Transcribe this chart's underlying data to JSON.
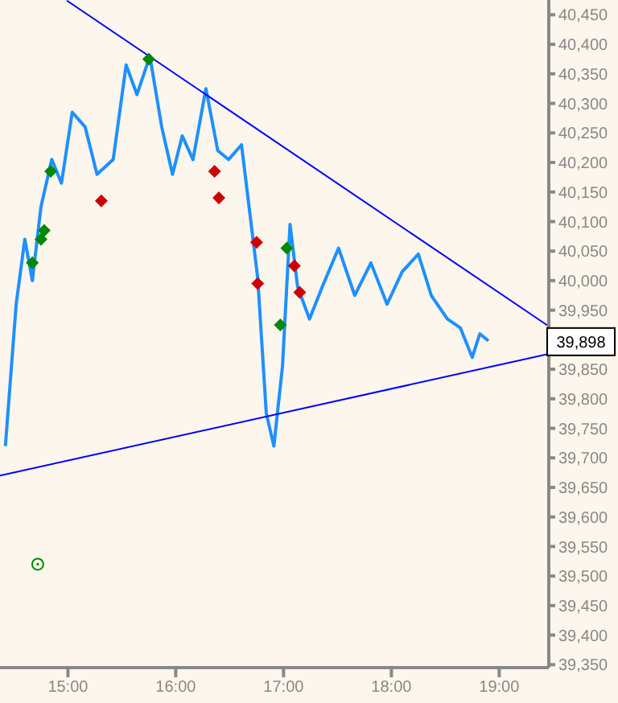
{
  "chart_data": {
    "type": "line",
    "xlim": [
      14.37,
      19.46
    ],
    "ylim": [
      39345,
      40475
    ],
    "xticks": [
      {
        "value": 15,
        "label": "15:00"
      },
      {
        "value": 16,
        "label": "16:00"
      },
      {
        "value": 17,
        "label": "17:00"
      },
      {
        "value": 18,
        "label": "18:00"
      },
      {
        "value": 19,
        "label": "19:00"
      }
    ],
    "yticks": [
      {
        "value": 39350,
        "label": "39,350"
      },
      {
        "value": 39400,
        "label": "39,400"
      },
      {
        "value": 39450,
        "label": "39,450"
      },
      {
        "value": 39500,
        "label": "39,500"
      },
      {
        "value": 39550,
        "label": "39,550"
      },
      {
        "value": 39600,
        "label": "39,600"
      },
      {
        "value": 39650,
        "label": "39,650"
      },
      {
        "value": 39700,
        "label": "39,700"
      },
      {
        "value": 39750,
        "label": "39,750"
      },
      {
        "value": 39800,
        "label": "39,800"
      },
      {
        "value": 39850,
        "label": "39,850"
      },
      {
        "value": 39900,
        "label": null
      },
      {
        "value": 39950,
        "label": "39,950"
      },
      {
        "value": 40000,
        "label": "40,000"
      },
      {
        "value": 40050,
        "label": "40,050"
      },
      {
        "value": 40100,
        "label": "40,100"
      },
      {
        "value": 40150,
        "label": "40,150"
      },
      {
        "value": 40200,
        "label": "40,200"
      },
      {
        "value": 40250,
        "label": "40,250"
      },
      {
        "value": 40300,
        "label": "40,300"
      },
      {
        "value": 40350,
        "label": "40,350"
      },
      {
        "value": 40400,
        "label": "40,400"
      },
      {
        "value": 40450,
        "label": "40,450"
      }
    ],
    "grid": false,
    "legend": false,
    "series": [
      {
        "color": "#1e90ff",
        "marker": "none",
        "x": [
          14.42,
          14.52,
          14.6,
          14.67,
          14.75,
          14.85,
          14.94,
          15.04,
          15.16,
          15.27,
          15.42,
          15.54,
          15.64,
          15.76,
          15.87,
          15.97,
          16.06,
          16.16,
          16.28,
          16.39,
          16.49,
          16.61,
          16.69,
          16.76,
          16.84,
          16.91,
          16.99,
          17.06,
          17.13,
          17.24,
          17.36,
          17.51,
          17.66,
          17.81,
          17.96,
          18.1,
          18.25,
          18.37,
          18.52,
          18.64,
          18.75,
          18.82,
          18.9
        ],
        "values": [
          39720,
          39960,
          40070,
          40000,
          40125,
          40205,
          40165,
          40285,
          40260,
          40180,
          40205,
          40365,
          40315,
          40380,
          40260,
          40180,
          40245,
          40205,
          40325,
          40220,
          40205,
          40230,
          40110,
          40005,
          39775,
          39720,
          39855,
          40095,
          39990,
          39935,
          39990,
          40055,
          39975,
          40030,
          39960,
          40015,
          40045,
          39975,
          39935,
          39920,
          39870,
          39910,
          39898
        ]
      },
      {
        "color": "#0000ff",
        "marker": "none",
        "x": [
          14.99,
          19.45
        ],
        "values": [
          40474,
          39924
        ]
      },
      {
        "color": "#0000ff",
        "marker": "none",
        "x": [
          14.37,
          19.46
        ],
        "values": [
          39670,
          39876
        ]
      },
      {
        "type": "scatter",
        "color": "#008800",
        "marker": "diamond",
        "x": [
          14.67,
          14.75,
          14.78,
          14.84,
          15.75,
          16.97,
          17.03
        ],
        "values": [
          40030,
          40070,
          40085,
          40185,
          40375,
          39925,
          40055
        ]
      },
      {
        "type": "scatter",
        "color": "#cc0000",
        "marker": "diamond",
        "x": [
          15.31,
          16.36,
          16.4,
          16.75,
          16.76,
          17.1,
          17.15
        ],
        "values": [
          40135,
          40185,
          40140,
          40065,
          39995,
          40025,
          39980
        ]
      },
      {
        "type": "scatter",
        "color": "#008800",
        "marker": "circle",
        "x": [
          14.72
        ],
        "values": [
          39520
        ]
      }
    ],
    "annotations": [
      "39,898"
    ]
  }
}
